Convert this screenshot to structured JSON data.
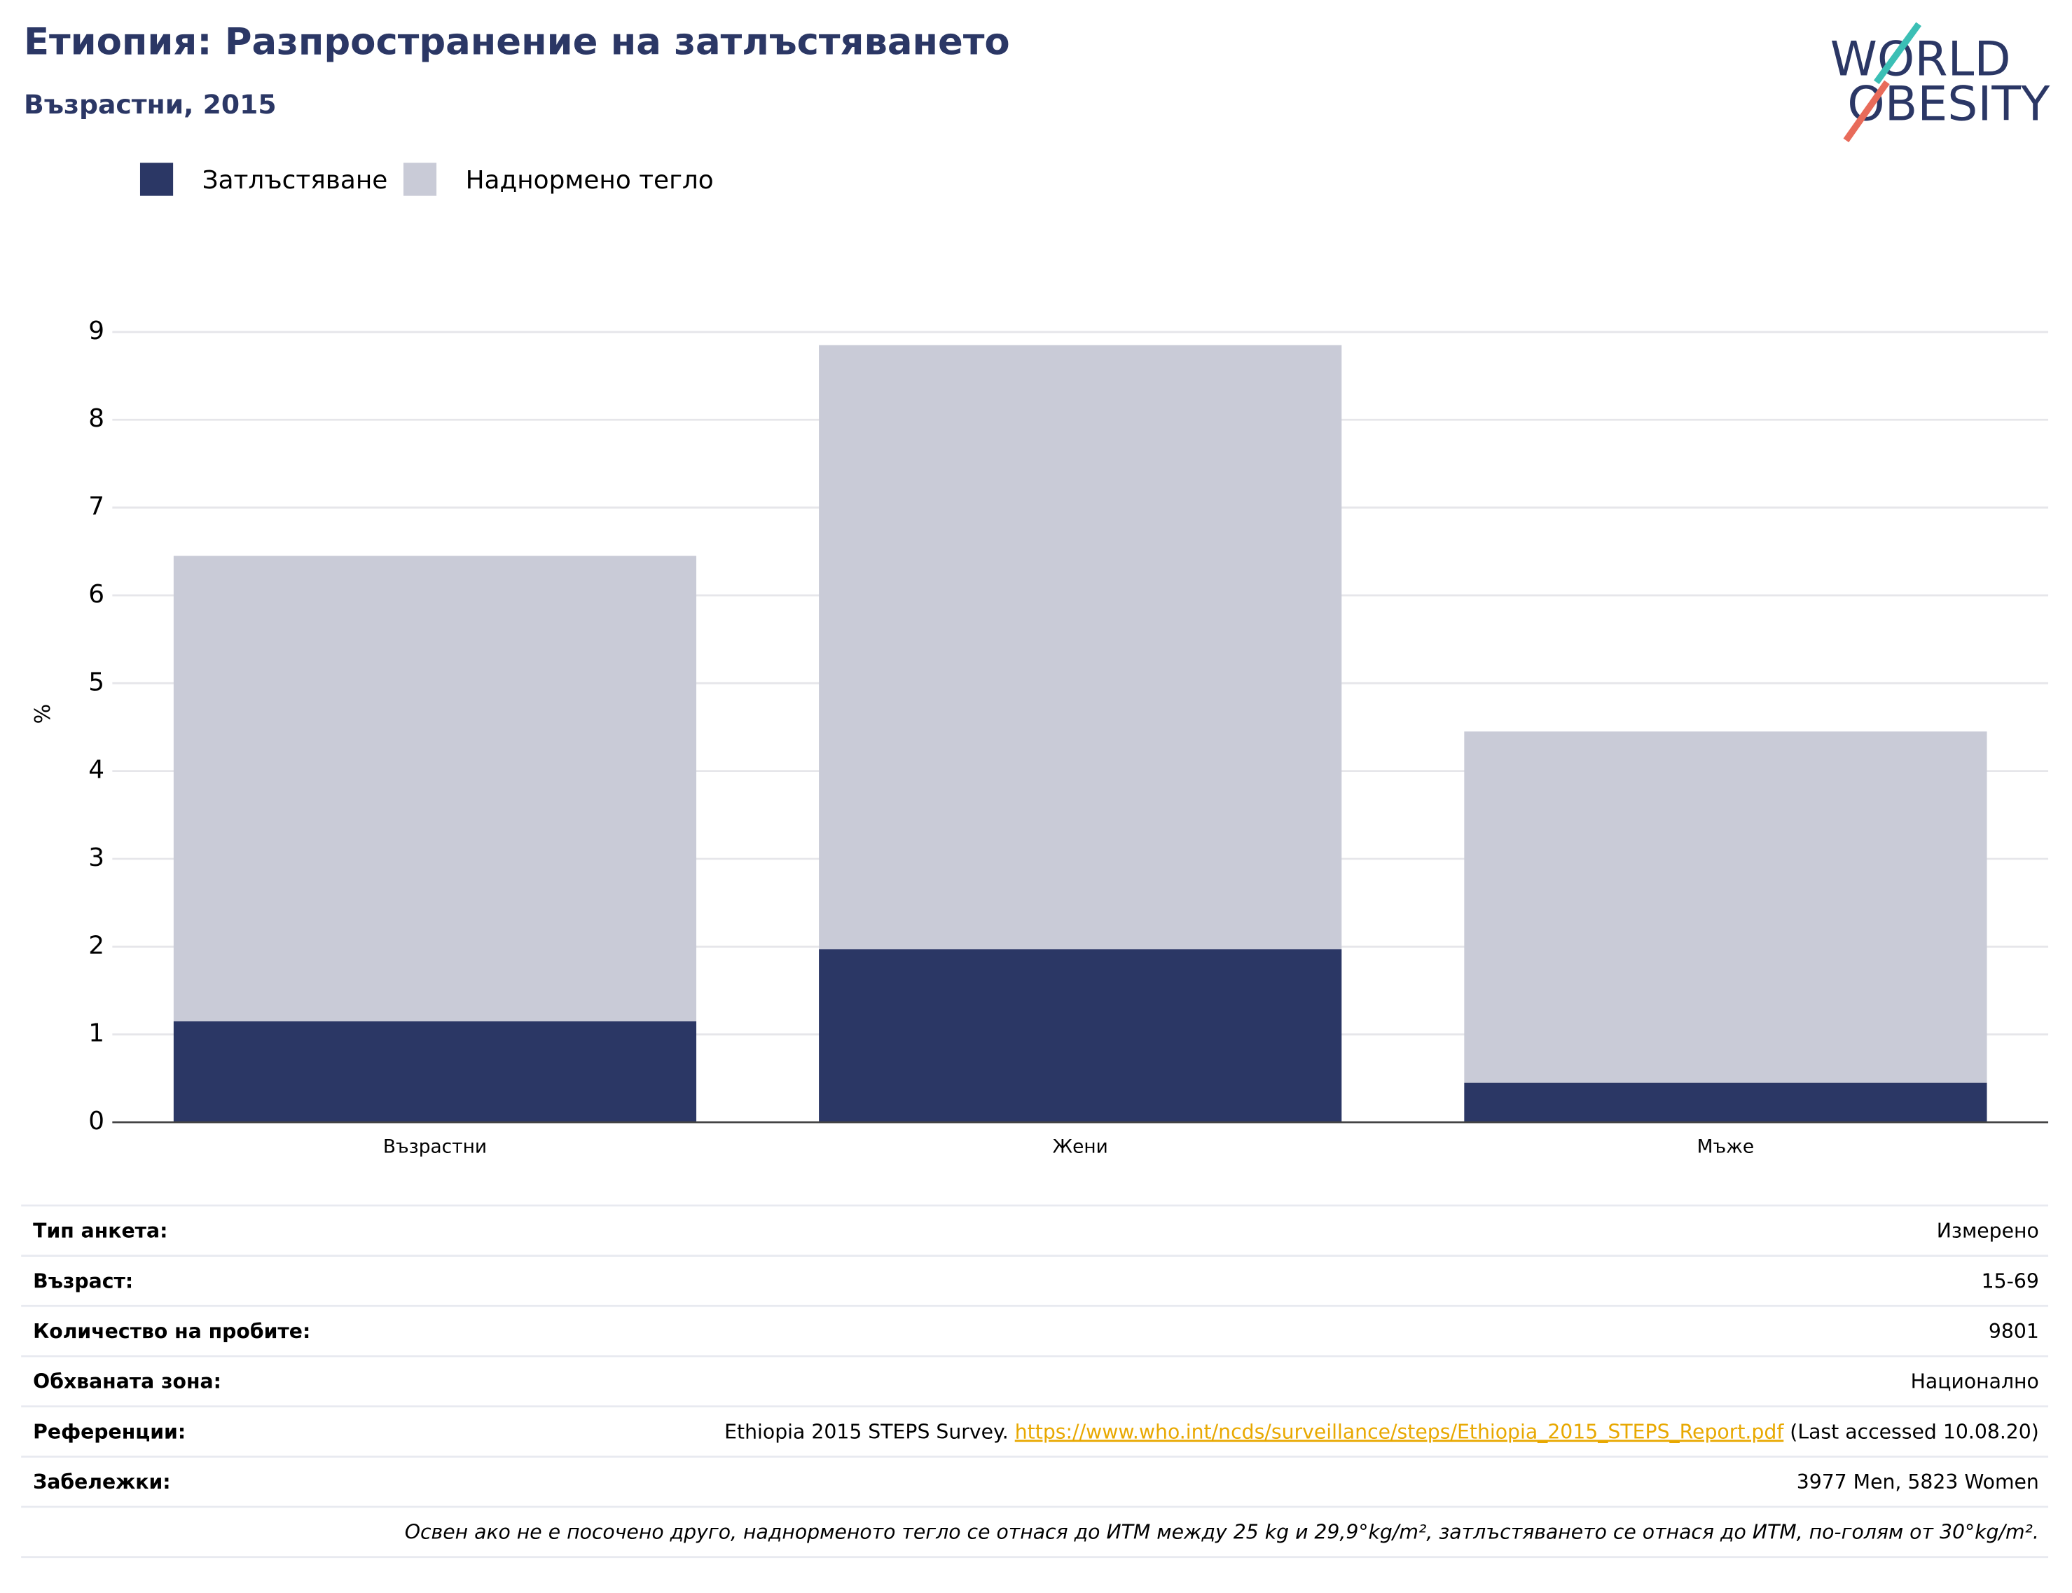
{
  "chart_data": {
    "type": "stacked-bar",
    "title": "Етиопия: Разпространение на затлъстяването",
    "subtitle": "Възрастни, 2015",
    "y_label": "%",
    "categories": [
      "Възрастни",
      "Жени",
      "Мъже"
    ],
    "series": [
      {
        "name": "Затлъстяване",
        "color": "#2b3765",
        "values": [
          1.15,
          1.97,
          0.45
        ]
      },
      {
        "name": "Наднормено тегло",
        "color": "#c9cbd7",
        "values": [
          5.3,
          6.88,
          4.0
        ]
      }
    ],
    "ylim": [
      0,
      9
    ],
    "yticks": [
      0,
      1,
      2,
      3,
      4,
      5,
      6,
      7,
      8,
      9
    ],
    "grid": true,
    "legend": "top-left"
  },
  "logo": {
    "line1": "WORLD",
    "line2": "OBESITY"
  },
  "table": {
    "rows": [
      [
        "Тип анкета:",
        "Измерено"
      ],
      [
        "Възраст:",
        "15-69"
      ],
      [
        "Количество на пробите:",
        "9801"
      ],
      [
        "Обхваната зона:",
        "Национално"
      ],
      [
        "Референции:",
        {
          "text": "Ethiopia 2015 STEPS Survey.",
          "link": "https://www.who.int/ncds/surveillance/steps/Ethiopia_2015_STEPS_Report.pdf",
          "accessed": "(Last accessed 10.08.20)"
        }
      ],
      [
        "Забележки:",
        "3977 Men, 5823 Women"
      ]
    ],
    "note": "Освен ако не е посочено друго, наднорменото тегло се отнася до ИТМ между 25 kg и 29,9°kg/m², затлъстяването се отнася до ИТМ, по-голям от 30°kg/m²."
  }
}
